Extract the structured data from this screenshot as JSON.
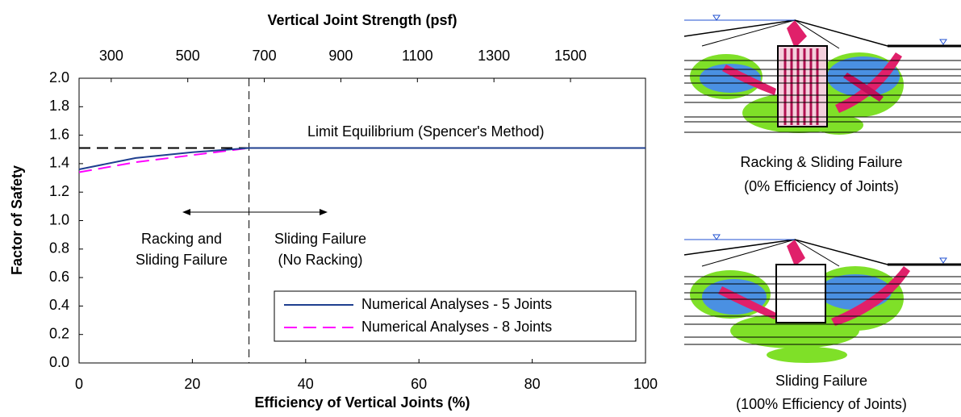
{
  "chart_data": {
    "type": "line",
    "title": "Vertical Joint Strength (psf)",
    "x_label": "Efficiency of Vertical Joints (%)",
    "y_label": "Factor of Safety",
    "xlim": [
      0,
      100
    ],
    "xticks": [
      0,
      20,
      40,
      60,
      80,
      100
    ],
    "ylim": [
      0,
      2
    ],
    "yticks": [
      {
        "value": 0,
        "label": "0.0"
      },
      0.2,
      0.4,
      0.6,
      0.8,
      {
        "value": 1,
        "label": "1.0"
      },
      1.2,
      1.4,
      1.6,
      1.8,
      {
        "value": 2,
        "label": "2.0"
      }
    ],
    "x2lim": [
      216,
      1696
    ],
    "x2ticks": [
      300,
      500,
      700,
      900,
      1100,
      1300,
      1500
    ],
    "grid": false,
    "legend": "lower right",
    "series": [
      {
        "name": "Numerical Analyses - 5 Joints",
        "color": "#1f3f8f",
        "line_style": "solid",
        "x": [
          0,
          10,
          20,
          30,
          40,
          50,
          60,
          70,
          80,
          90,
          100
        ],
        "values": [
          1.36,
          1.44,
          1.48,
          1.51,
          1.51,
          1.51,
          1.51,
          1.51,
          1.51,
          1.51,
          1.51
        ]
      },
      {
        "name": "Numerical Analyses - 8 Joints",
        "color": "#ff00ff",
        "line_style": "dashed",
        "x": [
          0,
          10,
          20,
          30,
          40,
          50,
          60,
          70,
          80,
          90,
          100
        ],
        "values": [
          1.34,
          1.41,
          1.46,
          1.51,
          1.51,
          1.51,
          1.51,
          1.51,
          1.51,
          1.51,
          1.51
        ]
      }
    ],
    "reference": {
      "label": "Limit Equilibrium (Spencer's Method)",
      "value": 1.51,
      "x_end": 30
    },
    "vline": 30,
    "annotations": [
      [
        "Racking and",
        "Sliding Failure"
      ],
      [
        "Sliding Failure",
        "(No Racking)"
      ]
    ]
  },
  "figures": [
    {
      "caption": [
        "Racking & Sliding Failure",
        "(0% Efficiency of Joints)"
      ]
    },
    {
      "caption": [
        "Sliding Failure",
        "(100% Efficiency of Joints)"
      ]
    }
  ]
}
